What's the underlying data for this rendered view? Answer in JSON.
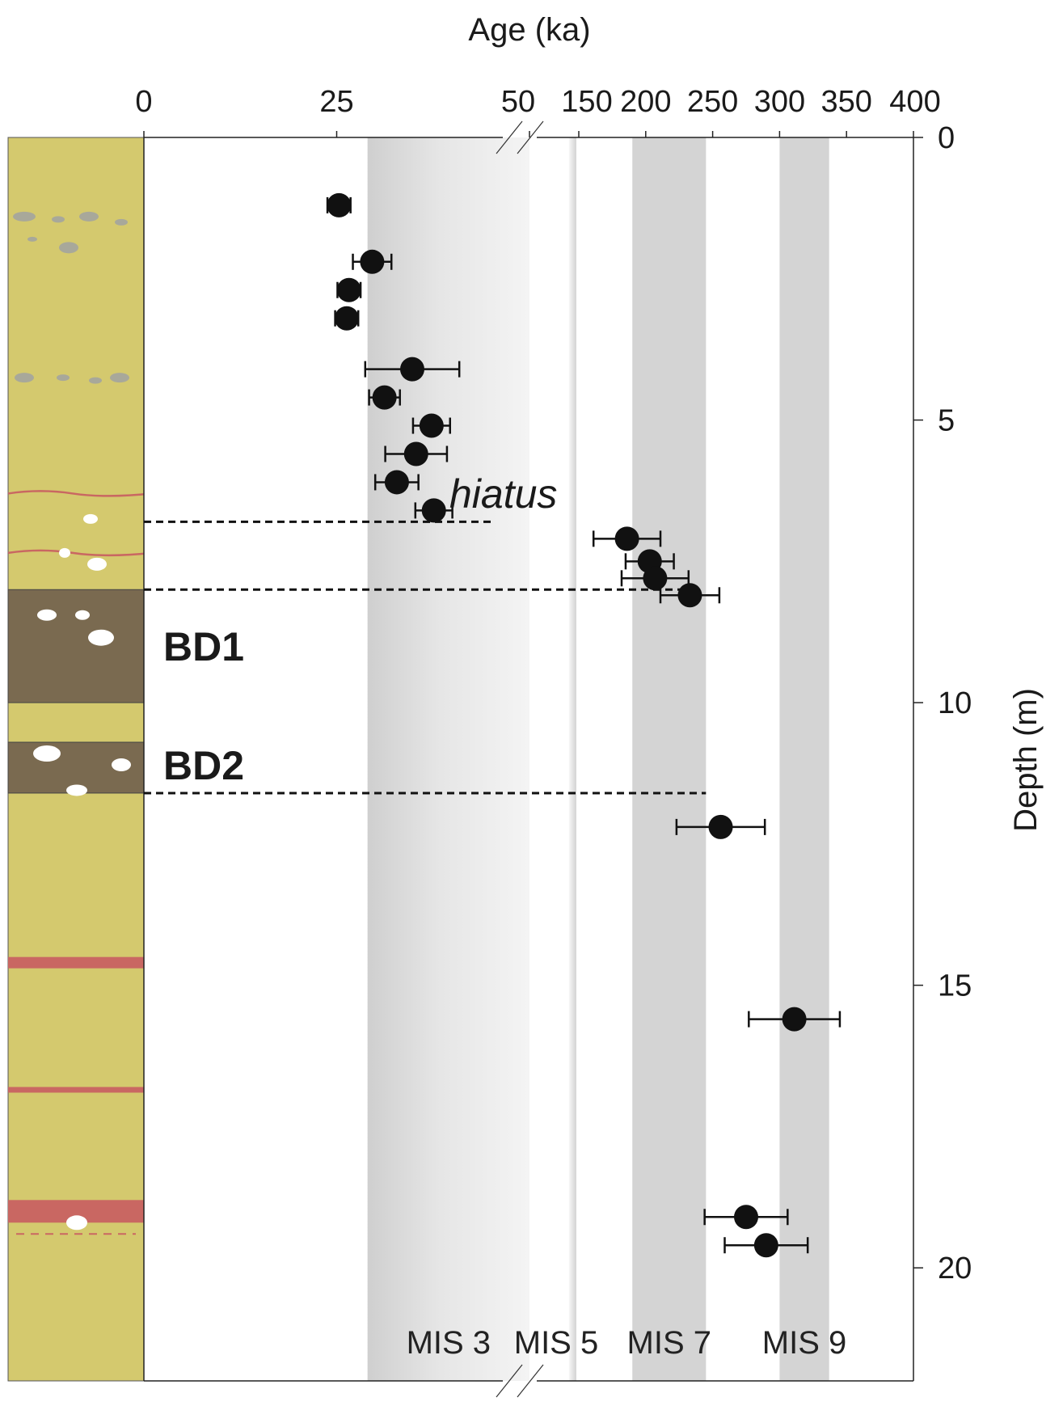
{
  "chart_data": {
    "type": "scatter",
    "title": "",
    "xlabel": "Age (ka)",
    "ylabel": "Depth (m)",
    "x_segments": [
      {
        "range": [
          0,
          50
        ],
        "ticks": [
          0,
          25,
          50
        ]
      },
      {
        "range": [
          150,
          400
        ],
        "ticks": [
          150,
          200,
          250,
          300,
          350,
          400
        ]
      }
    ],
    "x_tick_labels": [
      "0",
      "25",
      "50",
      "150",
      "200",
      "250",
      "300",
      "350",
      "400"
    ],
    "axis_break": "between 50 and 150 ka",
    "ylim": [
      0,
      22
    ],
    "y_ticks": [
      0,
      5,
      10,
      15,
      20
    ],
    "y_tick_labels": [
      "0",
      "5",
      "10",
      "15",
      "20"
    ],
    "y_axis_side": "right",
    "y_inverted": true,
    "points": [
      {
        "age": 25.3,
        "depth": 1.2,
        "err": 1.5
      },
      {
        "age": 29.6,
        "depth": 2.2,
        "err": 2.5
      },
      {
        "age": 26.6,
        "depth": 2.7,
        "err": 1.5
      },
      {
        "age": 26.3,
        "depth": 3.2,
        "err": 1.5
      },
      {
        "age": 34.8,
        "depth": 4.1,
        "err": 6.1
      },
      {
        "age": 31.2,
        "depth": 4.6,
        "err": 2.0
      },
      {
        "age": 37.3,
        "depth": 5.1,
        "err": 2.4
      },
      {
        "age": 35.3,
        "depth": 5.6,
        "err": 4.0
      },
      {
        "age": 32.8,
        "depth": 6.1,
        "err": 2.8
      },
      {
        "age": 37.6,
        "depth": 6.6,
        "err": 2.4
      },
      {
        "age": 186,
        "depth": 7.1,
        "err": 25
      },
      {
        "age": 203,
        "depth": 7.5,
        "err": 18
      },
      {
        "age": 207,
        "depth": 7.8,
        "err": 25
      },
      {
        "age": 233,
        "depth": 8.1,
        "err": 22
      },
      {
        "age": 256,
        "depth": 12.2,
        "err": 33
      },
      {
        "age": 311,
        "depth": 15.6,
        "err": 34
      },
      {
        "age": 275,
        "depth": 19.1,
        "err": 31
      },
      {
        "age": 290,
        "depth": 19.6,
        "err": 31
      }
    ],
    "bands": [
      {
        "name": "MIS 3",
        "range": [
          29,
          50
        ]
      },
      {
        "name": "MIS 5",
        "range": [
          130,
          145
        ]
      },
      {
        "name": "MIS 7",
        "range": [
          190,
          245
        ]
      },
      {
        "name": "MIS 9",
        "range": [
          300,
          337
        ]
      }
    ],
    "annotations": [
      {
        "text": "hiatus",
        "type": "dashed-line",
        "depth": 6.8,
        "to_age": 145
      },
      {
        "type": "dashed-line",
        "depth": 8.0,
        "to_age": 233
      },
      {
        "type": "dashed-line",
        "depth": 11.6,
        "to_age": 245
      }
    ],
    "column_labels": [
      "BD1",
      "BD2"
    ],
    "column_units": [
      {
        "name": "BD1",
        "top": 8.0,
        "bottom": 10.0,
        "color": "#7a6a50"
      },
      {
        "name": "BD2",
        "top": 10.7,
        "bottom": 11.6,
        "color": "#7a6a50"
      }
    ],
    "red_layers": [
      {
        "top": 14.5,
        "bottom": 14.7
      },
      {
        "top": 16.8,
        "bottom": 16.9
      },
      {
        "top": 18.8,
        "bottom": 19.2
      }
    ],
    "colors": {
      "sediment": "#d4c96e",
      "dark_unit": "#7a6a50",
      "red_layer": "#c96762",
      "band": "#d4d4d4",
      "marker": "#111111"
    }
  }
}
